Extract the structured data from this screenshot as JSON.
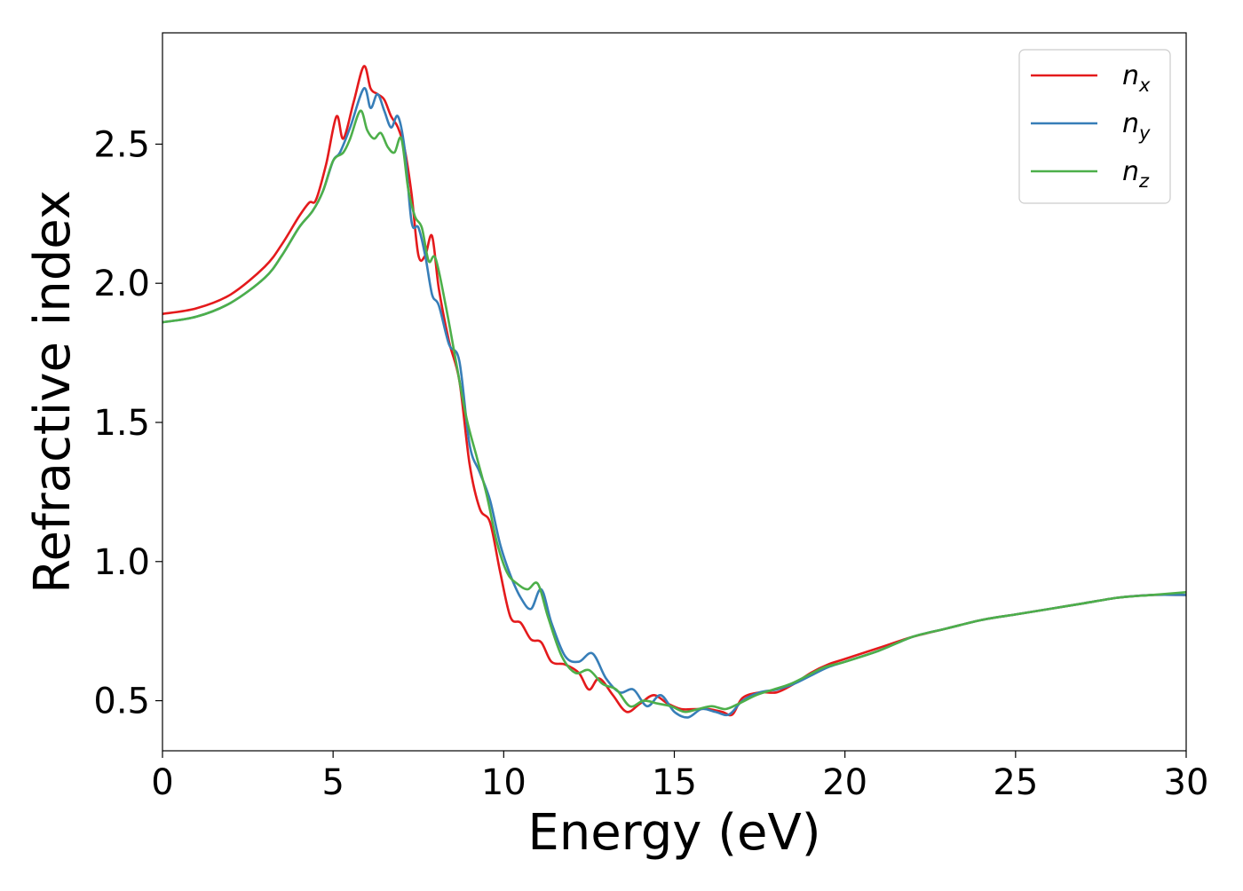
{
  "chart_data": {
    "type": "line",
    "title": "",
    "xlabel": "Energy (eV)",
    "ylabel": "Refractive index",
    "xlim": [
      0,
      30
    ],
    "ylim": [
      0.32,
      2.9
    ],
    "xticks": [
      0,
      5,
      10,
      15,
      20,
      25,
      30
    ],
    "xtick_labels": [
      "0",
      "5",
      "10",
      "15",
      "20",
      "25",
      "30"
    ],
    "yticks": [
      0.5,
      1.0,
      1.5,
      2.0,
      2.5
    ],
    "ytick_labels": [
      "0.5",
      "1.0",
      "1.5",
      "2.0",
      "2.5"
    ],
    "grid": false,
    "legend_position": "top-right",
    "series": [
      {
        "name": "n_x",
        "label_main": "n",
        "label_sub": "x",
        "color": "#e41a1c",
        "x": [
          0,
          1,
          2,
          3,
          3.5,
          4,
          4.3,
          4.5,
          4.8,
          5.1,
          5.3,
          5.6,
          5.9,
          6.1,
          6.3,
          6.5,
          6.7,
          6.9,
          7.1,
          7.3,
          7.5,
          7.7,
          7.9,
          8.1,
          8.4,
          8.7,
          9.0,
          9.3,
          9.6,
          9.9,
          10.2,
          10.5,
          10.8,
          11.1,
          11.4,
          11.8,
          12.2,
          12.5,
          12.8,
          13.2,
          13.6,
          14.0,
          14.4,
          14.8,
          15.2,
          15.6,
          16.0,
          16.4,
          16.7,
          17.0,
          17.5,
          18.0,
          18.5,
          19.0,
          19.5,
          20,
          21,
          22,
          23,
          24,
          25,
          26,
          27,
          28,
          29,
          30
        ],
        "y": [
          1.89,
          1.91,
          1.96,
          2.06,
          2.14,
          2.24,
          2.29,
          2.3,
          2.43,
          2.6,
          2.52,
          2.65,
          2.78,
          2.7,
          2.68,
          2.66,
          2.6,
          2.56,
          2.48,
          2.32,
          2.1,
          2.1,
          2.17,
          1.98,
          1.79,
          1.65,
          1.35,
          1.19,
          1.14,
          0.96,
          0.8,
          0.78,
          0.72,
          0.71,
          0.64,
          0.63,
          0.6,
          0.54,
          0.58,
          0.52,
          0.46,
          0.49,
          0.52,
          0.49,
          0.47,
          0.47,
          0.47,
          0.46,
          0.45,
          0.51,
          0.53,
          0.53,
          0.56,
          0.6,
          0.63,
          0.65,
          0.69,
          0.73,
          0.76,
          0.79,
          0.81,
          0.83,
          0.85,
          0.87,
          0.88,
          0.88
        ]
      },
      {
        "name": "n_y",
        "label_main": "n",
        "label_sub": "y",
        "color": "#377eb8",
        "x": [
          0,
          1,
          2,
          3,
          3.5,
          4,
          4.4,
          4.7,
          5.0,
          5.2,
          5.5,
          5.9,
          6.1,
          6.3,
          6.5,
          6.7,
          6.9,
          7.1,
          7.3,
          7.5,
          7.7,
          7.9,
          8.1,
          8.4,
          8.7,
          9.0,
          9.3,
          9.6,
          9.9,
          10.2,
          10.5,
          10.8,
          11.1,
          11.4,
          11.8,
          12.2,
          12.6,
          13.0,
          13.4,
          13.8,
          14.2,
          14.6,
          15.0,
          15.4,
          15.8,
          16.2,
          16.6,
          17.0,
          17.5,
          18.0,
          18.5,
          19.0,
          19.5,
          20,
          21,
          22,
          23,
          24,
          25,
          26,
          27,
          28,
          29,
          30
        ],
        "y": [
          1.86,
          1.88,
          1.93,
          2.02,
          2.1,
          2.2,
          2.26,
          2.33,
          2.44,
          2.47,
          2.56,
          2.7,
          2.63,
          2.68,
          2.62,
          2.56,
          2.6,
          2.48,
          2.22,
          2.2,
          2.1,
          1.96,
          1.92,
          1.78,
          1.72,
          1.42,
          1.32,
          1.22,
          1.06,
          0.95,
          0.87,
          0.83,
          0.9,
          0.78,
          0.66,
          0.64,
          0.67,
          0.58,
          0.53,
          0.54,
          0.48,
          0.52,
          0.46,
          0.44,
          0.47,
          0.46,
          0.45,
          0.5,
          0.53,
          0.54,
          0.56,
          0.59,
          0.62,
          0.64,
          0.68,
          0.73,
          0.76,
          0.79,
          0.81,
          0.83,
          0.85,
          0.87,
          0.88,
          0.88
        ]
      },
      {
        "name": "n_z",
        "label_main": "n",
        "label_sub": "z",
        "color": "#4daf4a",
        "x": [
          0,
          1,
          2,
          3,
          3.5,
          4,
          4.4,
          4.7,
          5.0,
          5.3,
          5.5,
          5.8,
          6.0,
          6.2,
          6.4,
          6.6,
          6.8,
          7.0,
          7.2,
          7.4,
          7.6,
          7.8,
          8.0,
          8.3,
          8.6,
          8.9,
          9.2,
          9.5,
          9.8,
          10.1,
          10.4,
          10.7,
          11.0,
          11.3,
          11.7,
          12.1,
          12.5,
          12.9,
          13.3,
          13.7,
          14.1,
          14.5,
          14.9,
          15.3,
          15.7,
          16.1,
          16.5,
          16.9,
          17.4,
          17.9,
          18.4,
          18.9,
          19.4,
          20,
          21,
          22,
          23,
          24,
          25,
          26,
          27,
          28,
          29,
          30
        ],
        "y": [
          1.86,
          1.88,
          1.93,
          2.02,
          2.1,
          2.2,
          2.26,
          2.33,
          2.44,
          2.47,
          2.52,
          2.62,
          2.55,
          2.52,
          2.54,
          2.49,
          2.47,
          2.52,
          2.34,
          2.24,
          2.2,
          2.08,
          2.09,
          1.92,
          1.72,
          1.52,
          1.38,
          1.24,
          1.07,
          0.96,
          0.92,
          0.9,
          0.92,
          0.8,
          0.66,
          0.6,
          0.61,
          0.56,
          0.54,
          0.48,
          0.5,
          0.49,
          0.48,
          0.46,
          0.47,
          0.48,
          0.47,
          0.49,
          0.52,
          0.54,
          0.56,
          0.59,
          0.62,
          0.64,
          0.68,
          0.73,
          0.76,
          0.79,
          0.81,
          0.83,
          0.85,
          0.87,
          0.88,
          0.89
        ]
      }
    ]
  }
}
